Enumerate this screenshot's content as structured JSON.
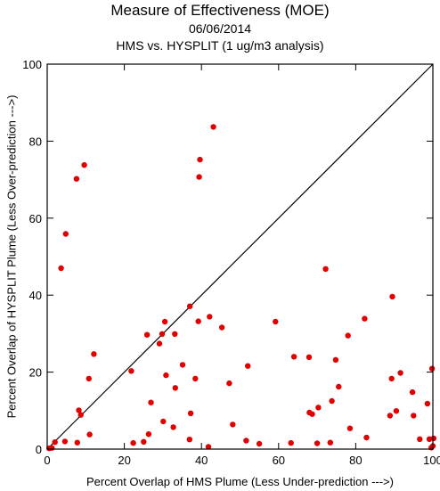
{
  "chart_data": {
    "type": "scatter",
    "title": "Measure of Effectiveness (MOE)",
    "subtitle": "06/06/2014",
    "subtitle2": "HMS vs. HYSPLIT  (1 ug/m3 analysis)",
    "xlabel": "Percent Overlap of HMS Plume (Less Under-prediction --->)",
    "ylabel": "Percent Overlap of HYSPLIT Plume (Less Over-prediction --->)",
    "xlim": [
      0,
      100
    ],
    "ylim": [
      0,
      100
    ],
    "xticks": [
      0,
      20,
      40,
      60,
      80,
      100
    ],
    "yticks": [
      0,
      20,
      40,
      60,
      80,
      100
    ],
    "xtick_labels": [
      "0",
      "20",
      "40",
      "60",
      "80",
      "100"
    ],
    "ytick_labels": [
      "0",
      "20",
      "40",
      "60",
      "80",
      "100"
    ],
    "diagonal_line": true,
    "grid": false,
    "marker_color": "#e00000",
    "points": [
      [
        0.5,
        0.2
      ],
      [
        1.2,
        0.3
      ],
      [
        2.0,
        1.8
      ],
      [
        3.6,
        47.0
      ],
      [
        4.6,
        2.0
      ],
      [
        4.8,
        55.9
      ],
      [
        7.6,
        70.2
      ],
      [
        7.8,
        1.7
      ],
      [
        8.2,
        10.1
      ],
      [
        8.7,
        8.9
      ],
      [
        9.6,
        73.8
      ],
      [
        10.8,
        18.3
      ],
      [
        11.0,
        3.8
      ],
      [
        12.1,
        24.7
      ],
      [
        21.8,
        20.3
      ],
      [
        22.3,
        1.6
      ],
      [
        25.0,
        1.9
      ],
      [
        25.9,
        29.7
      ],
      [
        26.3,
        3.9
      ],
      [
        26.9,
        12.1
      ],
      [
        29.1,
        27.4
      ],
      [
        29.8,
        29.9
      ],
      [
        30.1,
        7.2
      ],
      [
        30.5,
        33.1
      ],
      [
        30.8,
        19.2
      ],
      [
        32.7,
        5.7
      ],
      [
        33.1,
        29.9
      ],
      [
        33.2,
        15.9
      ],
      [
        35.1,
        21.9
      ],
      [
        36.9,
        2.5
      ],
      [
        37.0,
        37.1
      ],
      [
        37.2,
        9.3
      ],
      [
        38.4,
        18.3
      ],
      [
        39.2,
        33.2
      ],
      [
        39.4,
        70.7
      ],
      [
        39.6,
        75.2
      ],
      [
        41.8,
        0.6
      ],
      [
        42.1,
        34.4
      ],
      [
        43.1,
        83.7
      ],
      [
        45.3,
        31.6
      ],
      [
        47.2,
        17.1
      ],
      [
        48.1,
        6.4
      ],
      [
        51.6,
        2.2
      ],
      [
        52.0,
        21.6
      ],
      [
        55.0,
        1.4
      ],
      [
        59.2,
        33.1
      ],
      [
        63.2,
        1.6
      ],
      [
        64.0,
        24.0
      ],
      [
        67.9,
        23.9
      ],
      [
        68.0,
        9.5
      ],
      [
        68.7,
        9.1
      ],
      [
        70.0,
        1.5
      ],
      [
        70.3,
        10.8
      ],
      [
        72.2,
        46.8
      ],
      [
        73.4,
        1.7
      ],
      [
        73.8,
        12.5
      ],
      [
        74.8,
        23.2
      ],
      [
        75.6,
        16.2
      ],
      [
        78.0,
        29.5
      ],
      [
        78.5,
        5.4
      ],
      [
        82.3,
        33.9
      ],
      [
        82.8,
        3.0
      ],
      [
        88.9,
        8.7
      ],
      [
        89.3,
        18.3
      ],
      [
        89.5,
        39.6
      ],
      [
        90.5,
        9.9
      ],
      [
        91.6,
        19.8
      ],
      [
        94.7,
        14.8
      ],
      [
        95.0,
        8.7
      ],
      [
        96.6,
        2.6
      ],
      [
        98.6,
        11.8
      ],
      [
        99.1,
        2.6
      ],
      [
        99.6,
        0.4
      ],
      [
        99.8,
        20.9
      ],
      [
        100.0,
        0.8
      ],
      [
        100.2,
        2.8
      ]
    ]
  }
}
